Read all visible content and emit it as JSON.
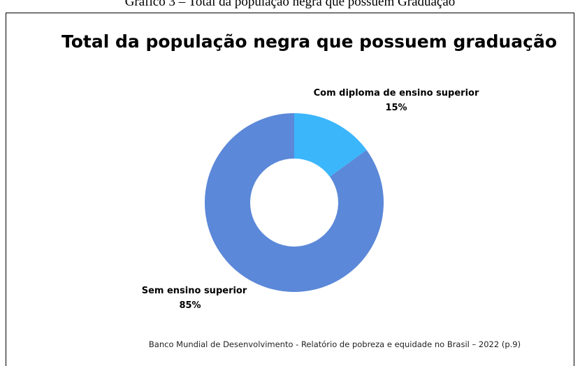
{
  "caption": "Gráfico 3 – Total da população negra que possuem Graduação",
  "chart_data": {
    "type": "donut",
    "title": "Total da população negra que possuem graduação",
    "categories": [
      "Com diploma de ensino superior",
      "Sem ensino superior"
    ],
    "values": [
      15,
      85
    ],
    "value_labels": [
      "15%",
      "85%"
    ],
    "colors": [
      "#3bb6fb",
      "#5b88d8"
    ],
    "source": "Banco Mundial de Desenvolvimento  - Relatório de pobreza e equidade no Brasil – 2022 (p.9)"
  }
}
